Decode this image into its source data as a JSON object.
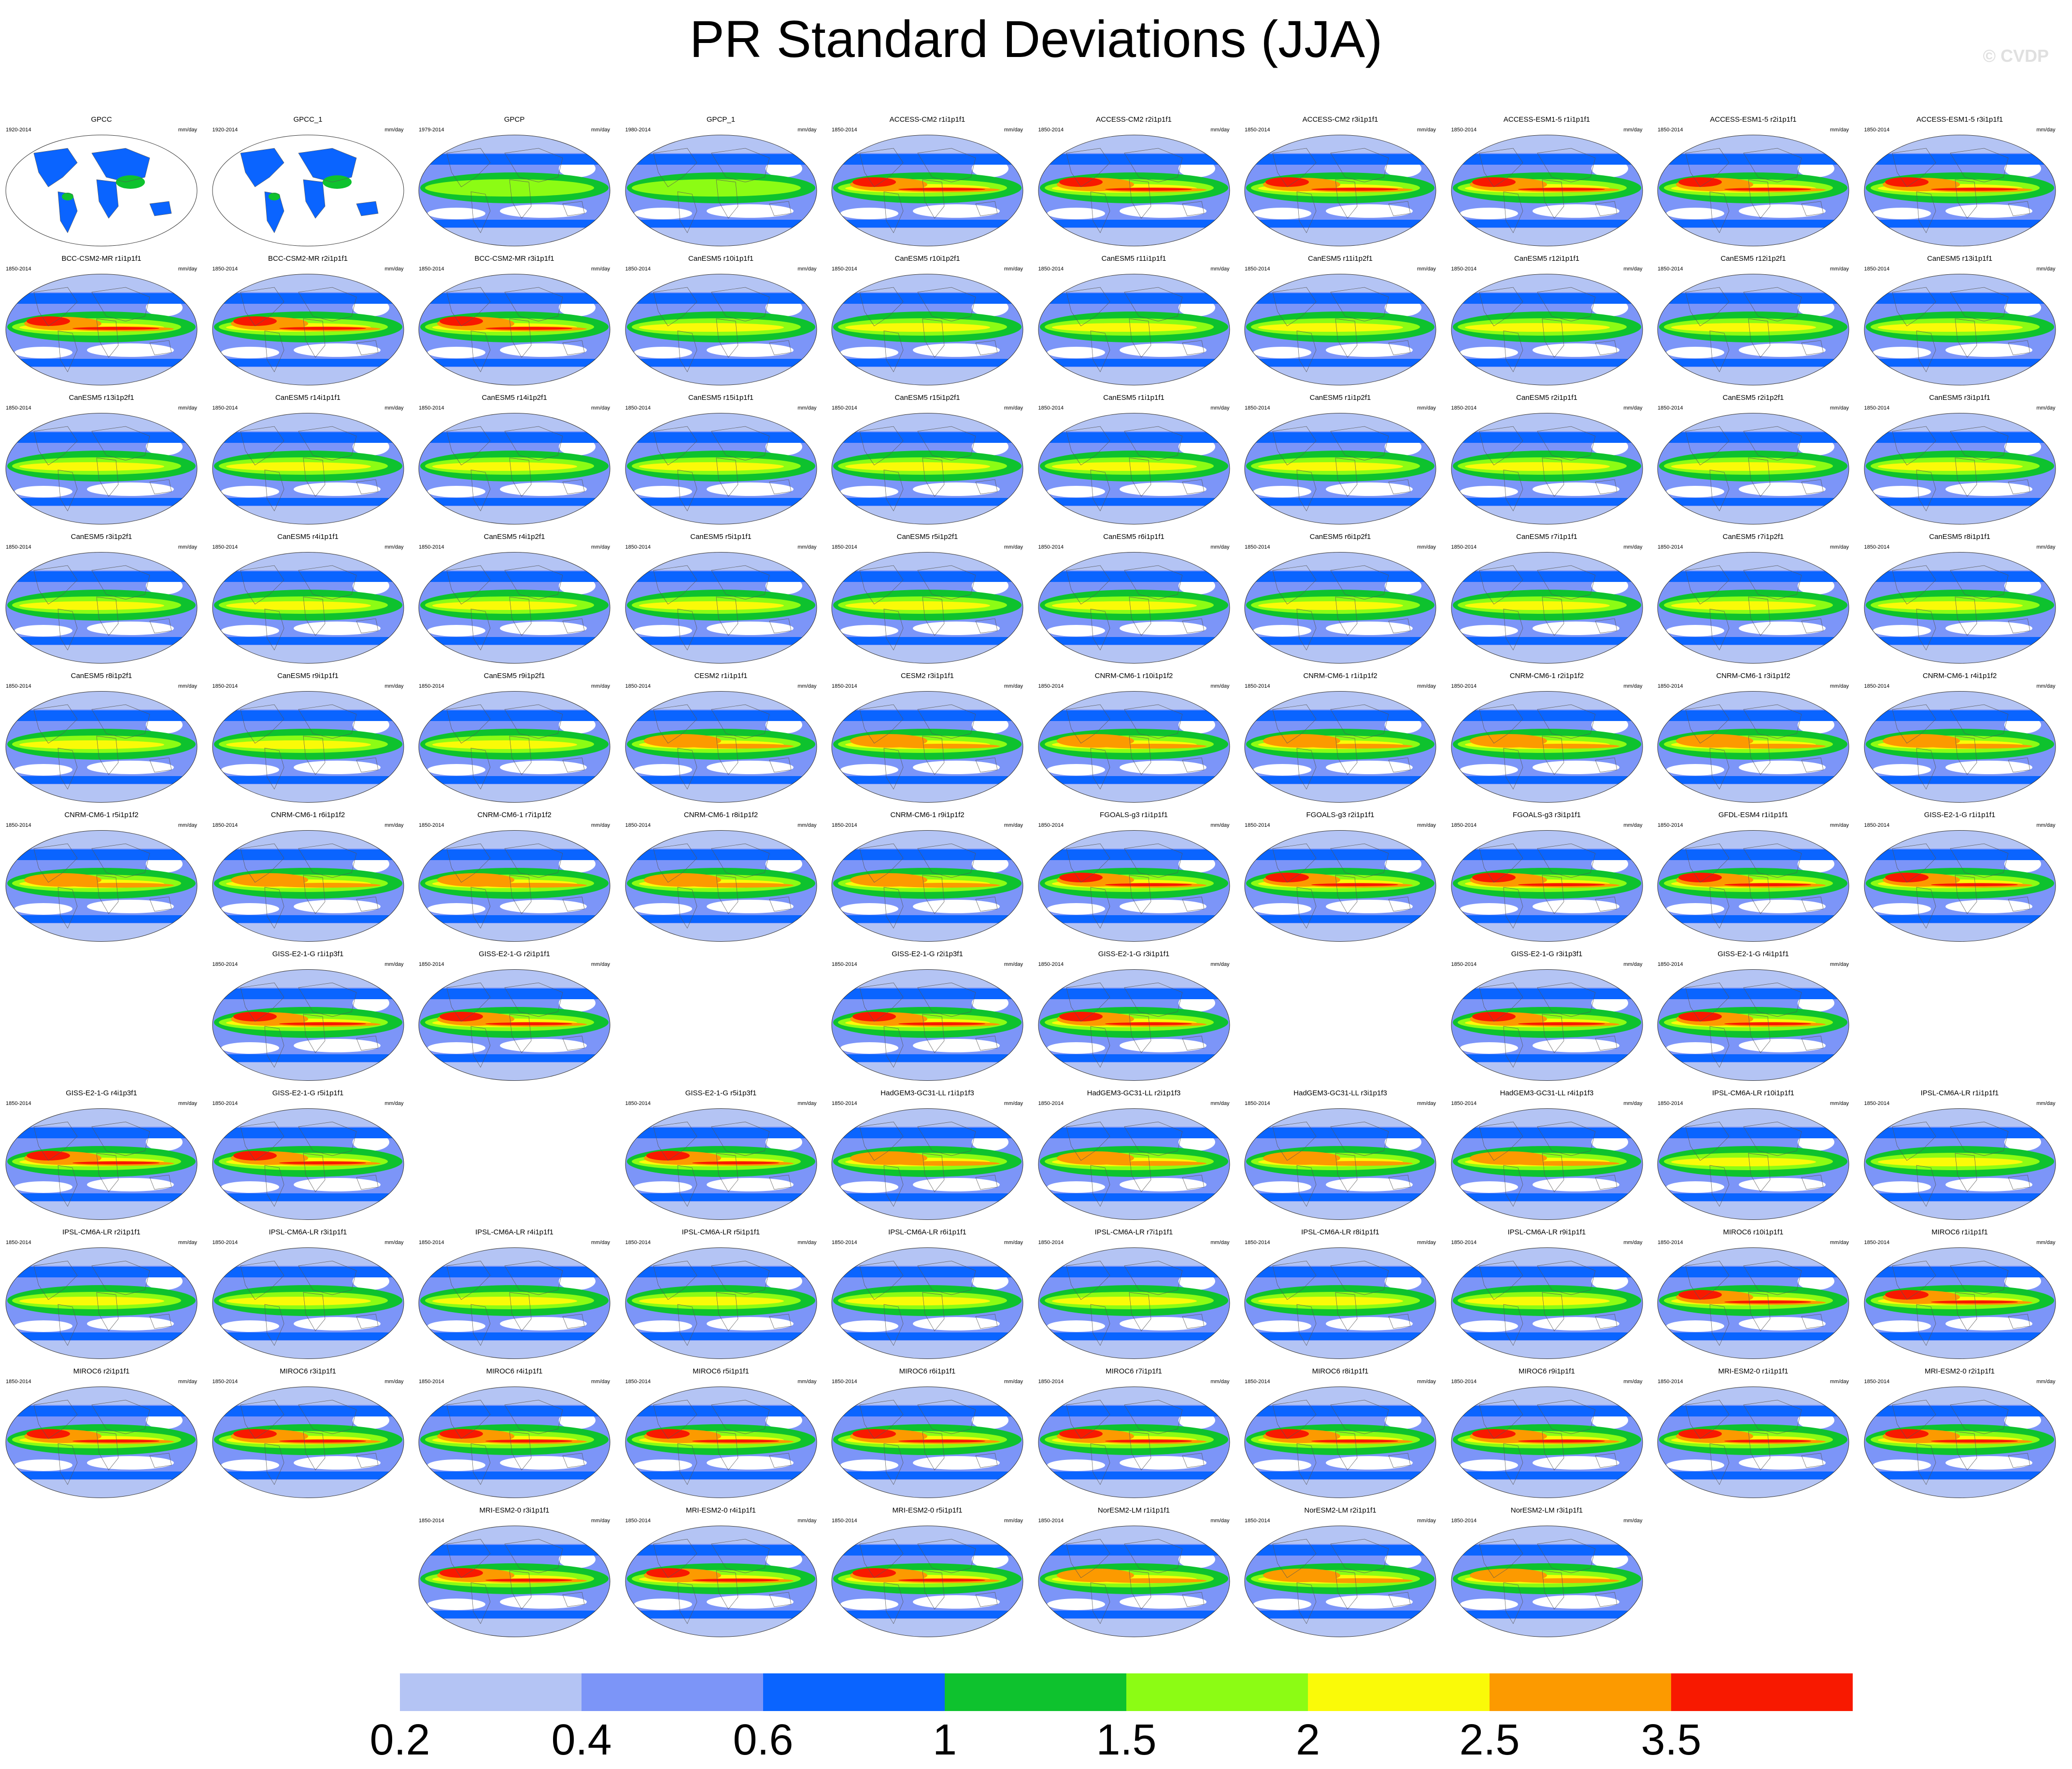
{
  "title": "PR Standard Deviations (JJA)",
  "watermark": "© CVDP",
  "units": "mm/day",
  "colorbar": {
    "colors": [
      "#ffffff",
      "#b4c4f4",
      "#7c95f8",
      "#0a64ff",
      "#0ec22e",
      "#8cfc14",
      "#fafa08",
      "#fc9a00",
      "#f81900"
    ],
    "labels": [
      "0.2",
      "0.4",
      "0.6",
      "1",
      "1.5",
      "2",
      "2.5",
      "3.5"
    ]
  },
  "panels": [
    {
      "name": "GPCC",
      "years": "1920-2014",
      "row": 0,
      "col": 0,
      "style": "obs-land"
    },
    {
      "name": "GPCC_1",
      "years": "1920-2014",
      "row": 0,
      "col": 1,
      "style": "obs-land"
    },
    {
      "name": "GPCP",
      "years": "1979-2014",
      "row": 0,
      "col": 2,
      "style": "obs"
    },
    {
      "name": "GPCP_1",
      "years": "1980-2014",
      "row": 0,
      "col": 3,
      "style": "obs"
    },
    {
      "name": "ACCESS-CM2 r1i1p1f1",
      "years": "1850-2014",
      "row": 0,
      "col": 4,
      "style": "strong"
    },
    {
      "name": "ACCESS-CM2 r2i1p1f1",
      "years": "1850-2014",
      "row": 0,
      "col": 5,
      "style": "strong"
    },
    {
      "name": "ACCESS-CM2 r3i1p1f1",
      "years": "1850-2014",
      "row": 0,
      "col": 6,
      "style": "strong"
    },
    {
      "name": "ACCESS-ESM1-5 r1i1p1f1",
      "years": "1850-2014",
      "row": 0,
      "col": 7,
      "style": "strong"
    },
    {
      "name": "ACCESS-ESM1-5 r2i1p1f1",
      "years": "1850-2014",
      "row": 0,
      "col": 8,
      "style": "strong"
    },
    {
      "name": "ACCESS-ESM1-5 r3i1p1f1",
      "years": "1850-2014",
      "row": 0,
      "col": 9,
      "style": "strong"
    },
    {
      "name": "BCC-CSM2-MR r1i1p1f1",
      "years": "1850-2014",
      "row": 1,
      "col": 0,
      "style": "strong"
    },
    {
      "name": "BCC-CSM2-MR r2i1p1f1",
      "years": "1850-2014",
      "row": 1,
      "col": 1,
      "style": "strong"
    },
    {
      "name": "BCC-CSM2-MR r3i1p1f1",
      "years": "1850-2014",
      "row": 1,
      "col": 2,
      "style": "strong"
    },
    {
      "name": "CanESM5 r10i1p1f1",
      "years": "1850-2014",
      "row": 1,
      "col": 3,
      "style": "mid"
    },
    {
      "name": "CanESM5 r10i1p2f1",
      "years": "1850-2014",
      "row": 1,
      "col": 4,
      "style": "mid"
    },
    {
      "name": "CanESM5 r11i1p1f1",
      "years": "1850-2014",
      "row": 1,
      "col": 5,
      "style": "mid"
    },
    {
      "name": "CanESM5 r11i1p2f1",
      "years": "1850-2014",
      "row": 1,
      "col": 6,
      "style": "mid"
    },
    {
      "name": "CanESM5 r12i1p1f1",
      "years": "1850-2014",
      "row": 1,
      "col": 7,
      "style": "mid"
    },
    {
      "name": "CanESM5 r12i1p2f1",
      "years": "1850-2014",
      "row": 1,
      "col": 8,
      "style": "mid"
    },
    {
      "name": "CanESM5 r13i1p1f1",
      "years": "1850-2014",
      "row": 1,
      "col": 9,
      "style": "mid"
    },
    {
      "name": "CanESM5 r13i1p2f1",
      "years": "1850-2014",
      "row": 2,
      "col": 0,
      "style": "mid"
    },
    {
      "name": "CanESM5 r14i1p1f1",
      "years": "1850-2014",
      "row": 2,
      "col": 1,
      "style": "mid"
    },
    {
      "name": "CanESM5 r14i1p2f1",
      "years": "1850-2014",
      "row": 2,
      "col": 2,
      "style": "mid"
    },
    {
      "name": "CanESM5 r15i1p1f1",
      "years": "1850-2014",
      "row": 2,
      "col": 3,
      "style": "mid"
    },
    {
      "name": "CanESM5 r15i1p2f1",
      "years": "1850-2014",
      "row": 2,
      "col": 4,
      "style": "mid"
    },
    {
      "name": "CanESM5 r1i1p1f1",
      "years": "1850-2014",
      "row": 2,
      "col": 5,
      "style": "mid"
    },
    {
      "name": "CanESM5 r1i1p2f1",
      "years": "1850-2014",
      "row": 2,
      "col": 6,
      "style": "mid"
    },
    {
      "name": "CanESM5 r2i1p1f1",
      "years": "1850-2014",
      "row": 2,
      "col": 7,
      "style": "mid"
    },
    {
      "name": "CanESM5 r2i1p2f1",
      "years": "1850-2014",
      "row": 2,
      "col": 8,
      "style": "mid"
    },
    {
      "name": "CanESM5 r3i1p1f1",
      "years": "1850-2014",
      "row": 2,
      "col": 9,
      "style": "mid"
    },
    {
      "name": "CanESM5 r3i1p2f1",
      "years": "1850-2014",
      "row": 3,
      "col": 0,
      "style": "mid"
    },
    {
      "name": "CanESM5 r4i1p1f1",
      "years": "1850-2014",
      "row": 3,
      "col": 1,
      "style": "mid"
    },
    {
      "name": "CanESM5 r4i1p2f1",
      "years": "1850-2014",
      "row": 3,
      "col": 2,
      "style": "mid"
    },
    {
      "name": "CanESM5 r5i1p1f1",
      "years": "1850-2014",
      "row": 3,
      "col": 3,
      "style": "mid"
    },
    {
      "name": "CanESM5 r5i1p2f1",
      "years": "1850-2014",
      "row": 3,
      "col": 4,
      "style": "mid"
    },
    {
      "name": "CanESM5 r6i1p1f1",
      "years": "1850-2014",
      "row": 3,
      "col": 5,
      "style": "mid"
    },
    {
      "name": "CanESM5 r6i1p2f1",
      "years": "1850-2014",
      "row": 3,
      "col": 6,
      "style": "mid"
    },
    {
      "name": "CanESM5 r7i1p1f1",
      "years": "1850-2014",
      "row": 3,
      "col": 7,
      "style": "mid"
    },
    {
      "name": "CanESM5 r7i1p2f1",
      "years": "1850-2014",
      "row": 3,
      "col": 8,
      "style": "mid"
    },
    {
      "name": "CanESM5 r8i1p1f1",
      "years": "1850-2014",
      "row": 3,
      "col": 9,
      "style": "mid"
    },
    {
      "name": "CanESM5 r8i1p2f1",
      "years": "1850-2014",
      "row": 4,
      "col": 0,
      "style": "mid"
    },
    {
      "name": "CanESM5 r9i1p1f1",
      "years": "1850-2014",
      "row": 4,
      "col": 1,
      "style": "mid"
    },
    {
      "name": "CanESM5 r9i1p2f1",
      "years": "1850-2014",
      "row": 4,
      "col": 2,
      "style": "mid"
    },
    {
      "name": "CESM2 r1i1p1f1",
      "years": "1850-2014",
      "row": 4,
      "col": 3,
      "style": "warm"
    },
    {
      "name": "CESM2 r3i1p1f1",
      "years": "1850-2014",
      "row": 4,
      "col": 4,
      "style": "warm"
    },
    {
      "name": "CNRM-CM6-1 r10i1p1f2",
      "years": "1850-2014",
      "row": 4,
      "col": 5,
      "style": "warm"
    },
    {
      "name": "CNRM-CM6-1 r1i1p1f2",
      "years": "1850-2014",
      "row": 4,
      "col": 6,
      "style": "warm"
    },
    {
      "name": "CNRM-CM6-1 r2i1p1f2",
      "years": "1850-2014",
      "row": 4,
      "col": 7,
      "style": "warm"
    },
    {
      "name": "CNRM-CM6-1 r3i1p1f2",
      "years": "1850-2014",
      "row": 4,
      "col": 8,
      "style": "warm"
    },
    {
      "name": "CNRM-CM6-1 r4i1p1f2",
      "years": "1850-2014",
      "row": 4,
      "col": 9,
      "style": "warm"
    },
    {
      "name": "CNRM-CM6-1 r5i1p1f2",
      "years": "1850-2014",
      "row": 5,
      "col": 0,
      "style": "warm"
    },
    {
      "name": "CNRM-CM6-1 r6i1p1f2",
      "years": "1850-2014",
      "row": 5,
      "col": 1,
      "style": "warm"
    },
    {
      "name": "CNRM-CM6-1 r7i1p1f2",
      "years": "1850-2014",
      "row": 5,
      "col": 2,
      "style": "warm"
    },
    {
      "name": "CNRM-CM6-1 r8i1p1f2",
      "years": "1850-2014",
      "row": 5,
      "col": 3,
      "style": "warm"
    },
    {
      "name": "CNRM-CM6-1 r9i1p1f2",
      "years": "1850-2014",
      "row": 5,
      "col": 4,
      "style": "warm"
    },
    {
      "name": "FGOALS-g3 r1i1p1f1",
      "years": "1850-2014",
      "row": 5,
      "col": 5,
      "style": "strong"
    },
    {
      "name": "FGOALS-g3 r2i1p1f1",
      "years": "1850-2014",
      "row": 5,
      "col": 6,
      "style": "strong"
    },
    {
      "name": "FGOALS-g3 r3i1p1f1",
      "years": "1850-2014",
      "row": 5,
      "col": 7,
      "style": "strong"
    },
    {
      "name": "GFDL-ESM4 r1i1p1f1",
      "years": "1850-2014",
      "row": 5,
      "col": 8,
      "style": "strong"
    },
    {
      "name": "GISS-E2-1-G r1i1p1f1",
      "years": "1850-2014",
      "row": 5,
      "col": 9,
      "style": "strong"
    },
    {
      "name": "GISS-E2-1-G r1i1p3f1",
      "years": "1850-2014",
      "row": 6,
      "col": 1,
      "style": "strong"
    },
    {
      "name": "GISS-E2-1-G r2i1p1f1",
      "years": "1850-2014",
      "row": 6,
      "col": 2,
      "style": "strong"
    },
    {
      "name": "GISS-E2-1-G r2i1p3f1",
      "years": "1850-2014",
      "row": 6,
      "col": 4,
      "style": "strong"
    },
    {
      "name": "GISS-E2-1-G r3i1p1f1",
      "years": "1850-2014",
      "row": 6,
      "col": 5,
      "style": "strong"
    },
    {
      "name": "GISS-E2-1-G r3i1p3f1",
      "years": "1850-2014",
      "row": 6,
      "col": 7,
      "style": "strong"
    },
    {
      "name": "GISS-E2-1-G r4i1p1f1",
      "years": "1850-2014",
      "row": 6,
      "col": 8,
      "style": "strong"
    },
    {
      "name": "GISS-E2-1-G r4i1p3f1",
      "years": "1850-2014",
      "row": 7,
      "col": 0,
      "style": "strong"
    },
    {
      "name": "GISS-E2-1-G r5i1p1f1",
      "years": "1850-2014",
      "row": 7,
      "col": 1,
      "style": "strong"
    },
    {
      "name": "GISS-E2-1-G r5i1p3f1",
      "years": "1850-2014",
      "row": 7,
      "col": 3,
      "style": "strong"
    },
    {
      "name": "HadGEM3-GC31-LL r1i1p1f3",
      "years": "1850-2014",
      "row": 7,
      "col": 4,
      "style": "warm"
    },
    {
      "name": "HadGEM3-GC31-LL r2i1p1f3",
      "years": "1850-2014",
      "row": 7,
      "col": 5,
      "style": "warm"
    },
    {
      "name": "HadGEM3-GC31-LL r3i1p1f3",
      "years": "1850-2014",
      "row": 7,
      "col": 6,
      "style": "warm"
    },
    {
      "name": "HadGEM3-GC31-LL r4i1p1f3",
      "years": "1850-2014",
      "row": 7,
      "col": 7,
      "style": "warm"
    },
    {
      "name": "IPSL-CM6A-LR r10i1p1f1",
      "years": "1850-2014",
      "row": 7,
      "col": 8,
      "style": "mid"
    },
    {
      "name": "IPSL-CM6A-LR r1i1p1f1",
      "years": "1850-2014",
      "row": 7,
      "col": 9,
      "style": "mid"
    },
    {
      "name": "IPSL-CM6A-LR r2i1p1f1",
      "years": "1850-2014",
      "row": 8,
      "col": 0,
      "style": "mid"
    },
    {
      "name": "IPSL-CM6A-LR r3i1p1f1",
      "years": "1850-2014",
      "row": 8,
      "col": 1,
      "style": "mid"
    },
    {
      "name": "IPSL-CM6A-LR r4i1p1f1",
      "years": "1850-2014",
      "row": 8,
      "col": 2,
      "style": "mid"
    },
    {
      "name": "IPSL-CM6A-LR r5i1p1f1",
      "years": "1850-2014",
      "row": 8,
      "col": 3,
      "style": "mid"
    },
    {
      "name": "IPSL-CM6A-LR r6i1p1f1",
      "years": "1850-2014",
      "row": 8,
      "col": 4,
      "style": "mid"
    },
    {
      "name": "IPSL-CM6A-LR r7i1p1f1",
      "years": "1850-2014",
      "row": 8,
      "col": 5,
      "style": "mid"
    },
    {
      "name": "IPSL-CM6A-LR r8i1p1f1",
      "years": "1850-2014",
      "row": 8,
      "col": 6,
      "style": "mid"
    },
    {
      "name": "IPSL-CM6A-LR r9i1p1f1",
      "years": "1850-2014",
      "row": 8,
      "col": 7,
      "style": "mid"
    },
    {
      "name": "MIROC6 r10i1p1f1",
      "years": "1850-2014",
      "row": 8,
      "col": 8,
      "style": "strong"
    },
    {
      "name": "MIROC6 r1i1p1f1",
      "years": "1850-2014",
      "row": 8,
      "col": 9,
      "style": "strong"
    },
    {
      "name": "MIROC6 r2i1p1f1",
      "years": "1850-2014",
      "row": 9,
      "col": 0,
      "style": "strong"
    },
    {
      "name": "MIROC6 r3i1p1f1",
      "years": "1850-2014",
      "row": 9,
      "col": 1,
      "style": "strong"
    },
    {
      "name": "MIROC6 r4i1p1f1",
      "years": "1850-2014",
      "row": 9,
      "col": 2,
      "style": "strong"
    },
    {
      "name": "MIROC6 r5i1p1f1",
      "years": "1850-2014",
      "row": 9,
      "col": 3,
      "style": "strong"
    },
    {
      "name": "MIROC6 r6i1p1f1",
      "years": "1850-2014",
      "row": 9,
      "col": 4,
      "style": "strong"
    },
    {
      "name": "MIROC6 r7i1p1f1",
      "years": "1850-2014",
      "row": 9,
      "col": 5,
      "style": "strong"
    },
    {
      "name": "MIROC6 r8i1p1f1",
      "years": "1850-2014",
      "row": 9,
      "col": 6,
      "style": "strong"
    },
    {
      "name": "MIROC6 r9i1p1f1",
      "years": "1850-2014",
      "row": 9,
      "col": 7,
      "style": "strong"
    },
    {
      "name": "MRI-ESM2-0 r1i1p1f1",
      "years": "1850-2014",
      "row": 9,
      "col": 8,
      "style": "strong"
    },
    {
      "name": "MRI-ESM2-0 r2i1p1f1",
      "years": "1850-2014",
      "row": 9,
      "col": 9,
      "style": "strong"
    },
    {
      "name": "MRI-ESM2-0 r3i1p1f1",
      "years": "1850-2014",
      "row": 10,
      "col": 2,
      "style": "strong"
    },
    {
      "name": "MRI-ESM2-0 r4i1p1f1",
      "years": "1850-2014",
      "row": 10,
      "col": 3,
      "style": "strong"
    },
    {
      "name": "MRI-ESM2-0 r5i1p1f1",
      "years": "1850-2014",
      "row": 10,
      "col": 4,
      "style": "strong"
    },
    {
      "name": "NorESM2-LM r1i1p1f1",
      "years": "1850-2014",
      "row": 10,
      "col": 5,
      "style": "warm"
    },
    {
      "name": "NorESM2-LM r2i1p1f1",
      "years": "1850-2014",
      "row": 10,
      "col": 6,
      "style": "warm"
    },
    {
      "name": "NorESM2-LM r3i1p1f1",
      "years": "1850-2014",
      "row": 10,
      "col": 7,
      "style": "warm"
    }
  ]
}
